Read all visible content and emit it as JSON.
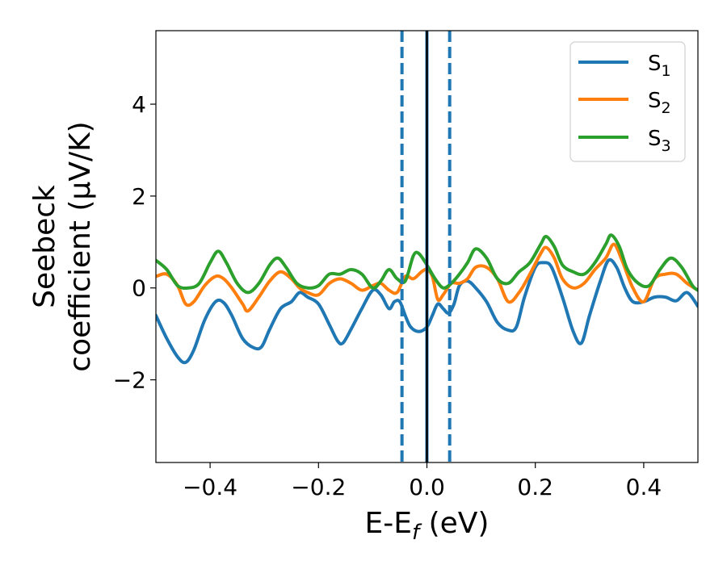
{
  "chart_data": {
    "type": "line",
    "xlabel": "E-E",
    "xlabel_sub": "f",
    "xlabel_unit": " (eV)",
    "ylabel_line1": "Seebeck",
    "ylabel_line2": "coefficient  (μV/K)",
    "xlim": [
      -0.5,
      0.5
    ],
    "ylim": [
      -3.8,
      5.6
    ],
    "xticks": [
      -0.4,
      -0.2,
      0.0,
      0.2,
      0.4
    ],
    "xtick_labels": [
      "−0.4",
      "−0.2",
      "0.0",
      "0.2",
      "0.4"
    ],
    "yticks": [
      -2,
      0,
      2,
      4
    ],
    "ytick_labels": [
      "−2",
      "0",
      "2",
      "4"
    ],
    "legend_position": "top-right",
    "vlines": [
      {
        "x": -0.046,
        "style": "dashed",
        "color": "#1f77b4"
      },
      {
        "x": 0.0,
        "style": "solid",
        "color": "#1f77b4"
      },
      {
        "x": 0.0,
        "style": "solid",
        "color": "#000000"
      },
      {
        "x": 0.042,
        "style": "dashed",
        "color": "#1f77b4"
      }
    ],
    "series": [
      {
        "name": "S",
        "name_sub": "1",
        "color": "#1f77b4",
        "x": [
          -0.5,
          -0.48,
          -0.46,
          -0.445,
          -0.43,
          -0.41,
          -0.39,
          -0.375,
          -0.36,
          -0.34,
          -0.32,
          -0.305,
          -0.29,
          -0.27,
          -0.25,
          -0.235,
          -0.22,
          -0.2,
          -0.18,
          -0.165,
          -0.155,
          -0.14,
          -0.12,
          -0.1,
          -0.085,
          -0.07,
          -0.06,
          -0.05,
          -0.04,
          -0.03,
          -0.015,
          0.0,
          0.01,
          0.02,
          0.03,
          0.04,
          0.05,
          0.06,
          0.075,
          0.09,
          0.11,
          0.13,
          0.15,
          0.165,
          0.18,
          0.2,
          0.215,
          0.23,
          0.25,
          0.27,
          0.285,
          0.3,
          0.32,
          0.335,
          0.35,
          0.365,
          0.38,
          0.4,
          0.42,
          0.44,
          0.46,
          0.48,
          0.5
        ],
        "y": [
          -0.6,
          -1.1,
          -1.5,
          -1.62,
          -1.35,
          -0.7,
          -0.3,
          -0.32,
          -0.6,
          -1.1,
          -1.3,
          -1.28,
          -0.9,
          -0.45,
          -0.3,
          -0.1,
          -0.2,
          -0.35,
          -0.8,
          -1.15,
          -1.2,
          -0.9,
          -0.45,
          -0.05,
          -0.15,
          -0.45,
          -0.3,
          -0.3,
          -0.6,
          -0.85,
          -0.95,
          -0.85,
          -0.6,
          -0.35,
          -0.45,
          -0.55,
          -0.35,
          0.05,
          0.15,
          0.0,
          -0.3,
          -0.75,
          -0.92,
          -0.85,
          -0.2,
          0.45,
          0.55,
          0.45,
          -0.2,
          -0.95,
          -1.2,
          -0.6,
          0.15,
          0.6,
          0.45,
          0.0,
          -0.3,
          -0.3,
          -0.2,
          -0.2,
          -0.28,
          -0.1,
          -0.4
        ]
      },
      {
        "name": "S",
        "name_sub": "2",
        "color": "#ff7f0e",
        "x": [
          -0.5,
          -0.48,
          -0.46,
          -0.445,
          -0.43,
          -0.41,
          -0.39,
          -0.375,
          -0.36,
          -0.34,
          -0.33,
          -0.31,
          -0.29,
          -0.27,
          -0.25,
          -0.235,
          -0.22,
          -0.2,
          -0.18,
          -0.16,
          -0.14,
          -0.12,
          -0.1,
          -0.085,
          -0.07,
          -0.055,
          -0.04,
          -0.025,
          -0.01,
          0.0,
          0.01,
          0.02,
          0.03,
          0.045,
          0.06,
          0.075,
          0.09,
          0.11,
          0.13,
          0.15,
          0.17,
          0.19,
          0.21,
          0.22,
          0.235,
          0.25,
          0.27,
          0.29,
          0.31,
          0.33,
          0.345,
          0.36,
          0.38,
          0.4,
          0.42,
          0.44,
          0.46,
          0.48,
          0.5
        ],
        "y": [
          0.25,
          0.3,
          0.05,
          -0.35,
          -0.3,
          0.05,
          0.25,
          0.2,
          0.0,
          -0.35,
          -0.5,
          -0.2,
          0.15,
          0.35,
          0.2,
          0.0,
          -0.1,
          -0.15,
          0.1,
          0.2,
          0.1,
          -0.05,
          0.05,
          0.1,
          -0.05,
          -0.1,
          0.25,
          0.2,
          0.35,
          0.4,
          0.25,
          -0.25,
          -0.15,
          0.1,
          0.1,
          0.2,
          0.45,
          0.45,
          0.2,
          -0.3,
          -0.1,
          0.3,
          0.75,
          0.88,
          0.65,
          0.2,
          0.0,
          0.1,
          0.4,
          0.65,
          0.95,
          0.6,
          0.0,
          -0.3,
          0.2,
          0.3,
          0.3,
          0.1,
          -0.05
        ]
      },
      {
        "name": "S",
        "name_sub": "3",
        "color": "#2ca02c",
        "x": [
          -0.5,
          -0.48,
          -0.46,
          -0.44,
          -0.42,
          -0.4,
          -0.385,
          -0.37,
          -0.35,
          -0.33,
          -0.31,
          -0.29,
          -0.275,
          -0.26,
          -0.24,
          -0.22,
          -0.2,
          -0.18,
          -0.16,
          -0.14,
          -0.12,
          -0.1,
          -0.085,
          -0.07,
          -0.055,
          -0.04,
          -0.025,
          -0.015,
          0.0,
          0.015,
          0.03,
          0.045,
          0.06,
          0.075,
          0.09,
          0.11,
          0.13,
          0.15,
          0.17,
          0.19,
          0.21,
          0.22,
          0.235,
          0.25,
          0.27,
          0.29,
          0.31,
          0.33,
          0.34,
          0.355,
          0.37,
          0.39,
          0.41,
          0.43,
          0.45,
          0.47,
          0.49,
          0.5
        ],
        "y": [
          0.6,
          0.4,
          0.05,
          0.0,
          0.1,
          0.55,
          0.8,
          0.55,
          0.1,
          -0.1,
          0.1,
          0.5,
          0.65,
          0.45,
          0.1,
          0.0,
          0.05,
          0.3,
          0.3,
          0.4,
          0.3,
          0.0,
          0.15,
          0.4,
          0.2,
          0.15,
          0.7,
          0.75,
          0.5,
          0.2,
          0.0,
          0.1,
          0.3,
          0.55,
          0.85,
          0.65,
          0.2,
          0.1,
          0.35,
          0.55,
          0.95,
          1.12,
          0.9,
          0.5,
          0.35,
          0.3,
          0.55,
          0.95,
          1.15,
          0.9,
          0.4,
          0.1,
          0.05,
          0.4,
          0.65,
          0.45,
          0.05,
          -0.05
        ]
      }
    ]
  }
}
